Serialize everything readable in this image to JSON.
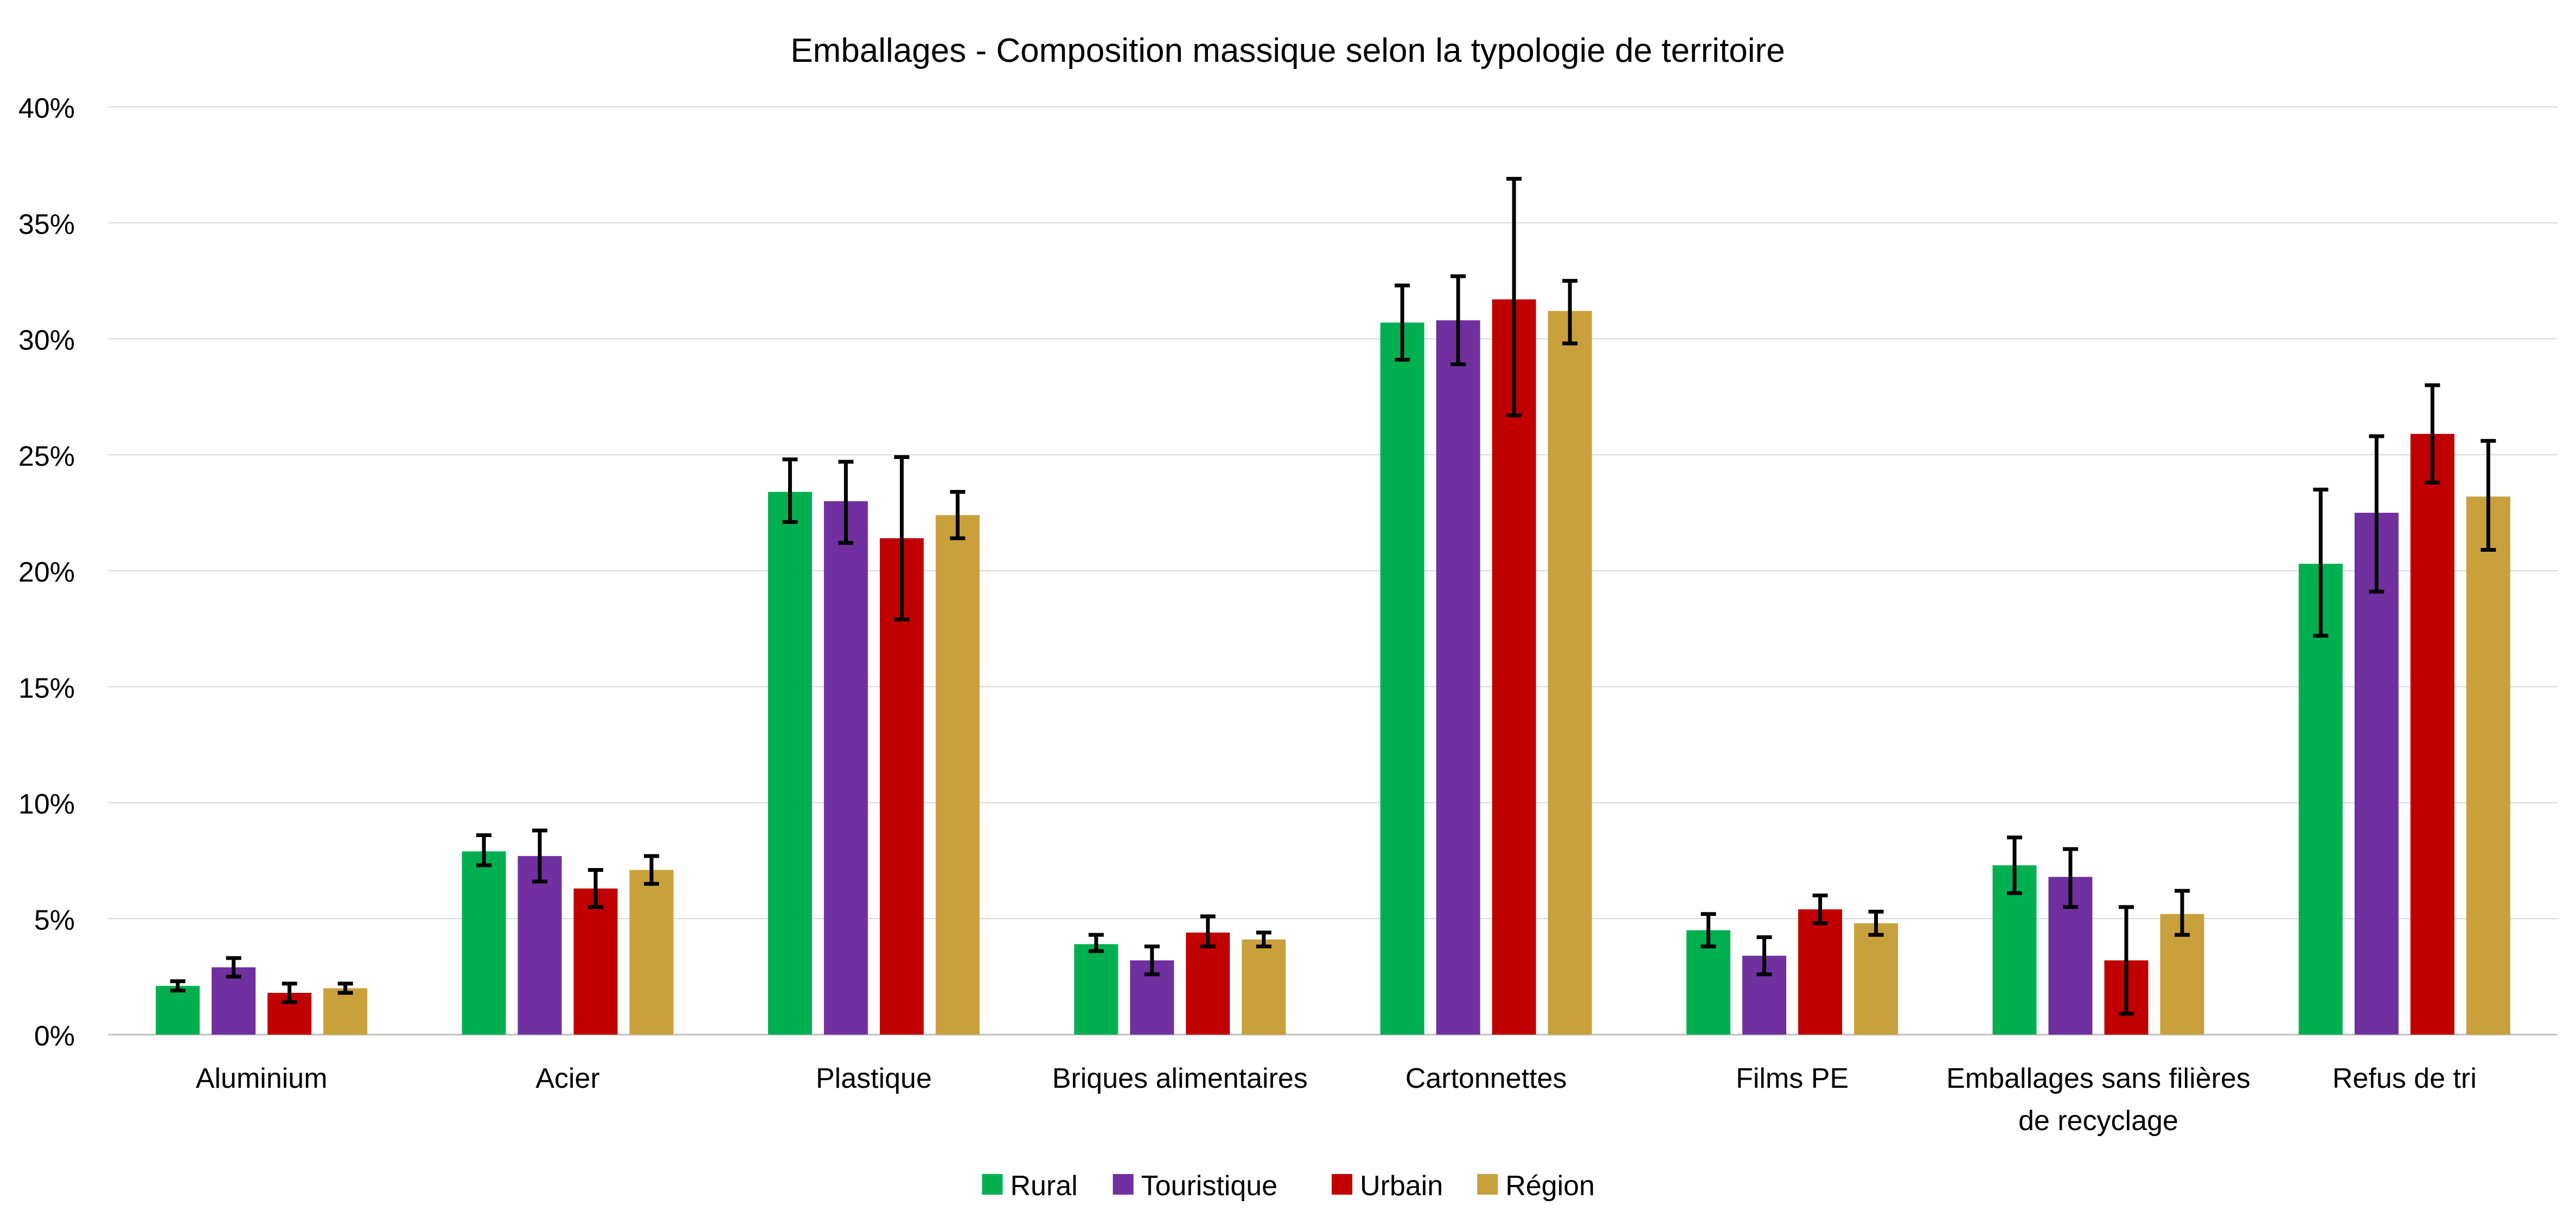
{
  "chart_data": {
    "type": "bar",
    "title": "Emballages - Composition massique selon la typologie de territoire",
    "xlabel": "",
    "ylabel": "",
    "ylim": [
      0,
      40
    ],
    "y_ticks": [
      "0%",
      "5%",
      "10%",
      "15%",
      "20%",
      "25%",
      "30%",
      "35%",
      "40%"
    ],
    "y_tick_values": [
      0,
      5,
      10,
      15,
      20,
      25,
      30,
      35,
      40
    ],
    "grid": true,
    "legend_position": "bottom",
    "error_bars": true,
    "categories": [
      [
        "Aluminium"
      ],
      [
        "Acier"
      ],
      [
        "Plastique"
      ],
      [
        "Briques alimentaires"
      ],
      [
        "Cartonnettes"
      ],
      [
        "Films PE"
      ],
      [
        "Emballages sans filières",
        "de recyclage"
      ],
      [
        "Refus de tri"
      ]
    ],
    "series": [
      {
        "name": "Rural",
        "color": "#00B050",
        "values": [
          2.1,
          7.9,
          23.4,
          3.9,
          30.7,
          4.5,
          7.3,
          20.3
        ],
        "error_low": [
          1.9,
          7.3,
          22.1,
          3.6,
          29.1,
          3.8,
          6.1,
          17.2
        ],
        "error_high": [
          2.3,
          8.6,
          24.8,
          4.3,
          32.3,
          5.2,
          8.5,
          23.5
        ]
      },
      {
        "name": "Touristique",
        "color": "#7030A0",
        "values": [
          2.9,
          7.7,
          23.0,
          3.2,
          30.8,
          3.4,
          6.8,
          22.5
        ],
        "error_low": [
          2.5,
          6.6,
          21.2,
          2.6,
          28.9,
          2.6,
          5.5,
          19.1
        ],
        "error_high": [
          3.3,
          8.8,
          24.7,
          3.8,
          32.7,
          4.2,
          8.0,
          25.8
        ]
      },
      {
        "name": "Urbain",
        "color": "#C00000",
        "values": [
          1.8,
          6.3,
          21.4,
          4.4,
          31.7,
          5.4,
          3.2,
          25.9
        ],
        "error_low": [
          1.4,
          5.5,
          17.9,
          3.8,
          26.7,
          4.8,
          0.9,
          23.8
        ],
        "error_high": [
          2.2,
          7.1,
          24.9,
          5.1,
          36.9,
          6.0,
          5.5,
          28.0
        ]
      },
      {
        "name": "Région",
        "color": "#C9A13C",
        "values": [
          2.0,
          7.1,
          22.4,
          4.1,
          31.2,
          4.8,
          5.2,
          23.2
        ],
        "error_low": [
          1.8,
          6.5,
          21.4,
          3.8,
          29.8,
          4.3,
          4.3,
          20.9
        ],
        "error_high": [
          2.2,
          7.7,
          23.4,
          4.4,
          32.5,
          5.3,
          6.2,
          25.6
        ]
      }
    ]
  }
}
